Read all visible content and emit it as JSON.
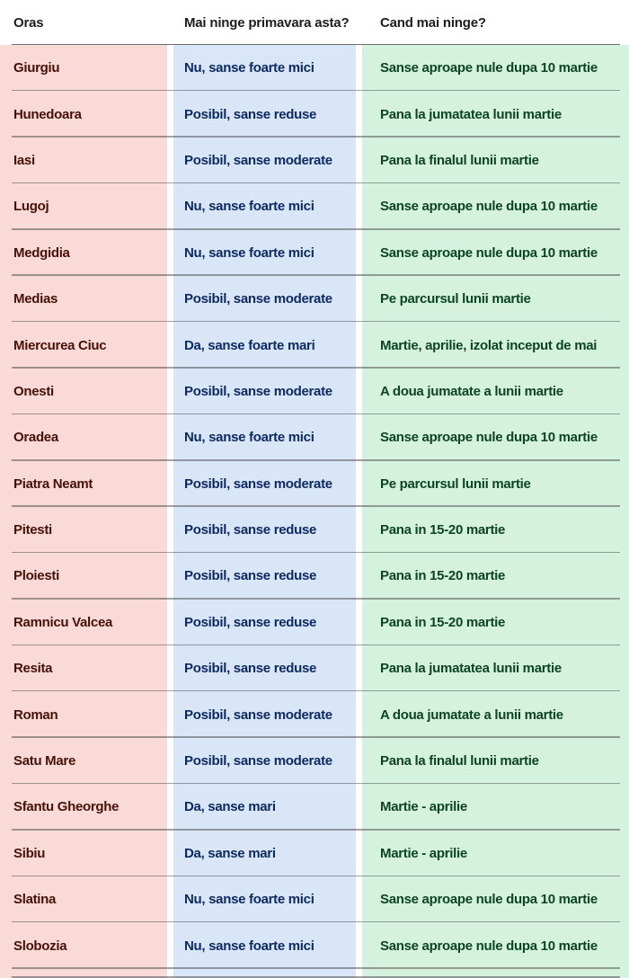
{
  "chart_data": {
    "type": "table",
    "columns": [
      "Oras",
      "Mai ninge primavara asta?",
      "Cand mai ninge?"
    ],
    "rows": [
      [
        "Giurgiu",
        "Nu, sanse foarte mici",
        "Sanse aproape nule dupa 10 martie"
      ],
      [
        "Hunedoara",
        "Posibil, sanse reduse",
        "Pana la jumatatea lunii martie"
      ],
      [
        "Iasi",
        "Posibil, sanse moderate",
        "Pana la finalul lunii martie"
      ],
      [
        "Lugoj",
        "Nu, sanse foarte mici",
        "Sanse aproape nule dupa 10 martie"
      ],
      [
        "Medgidia",
        "Nu, sanse foarte mici",
        "Sanse aproape nule dupa 10 martie"
      ],
      [
        "Medias",
        "Posibil, sanse moderate",
        "Pe parcursul lunii martie"
      ],
      [
        "Miercurea Ciuc",
        "Da, sanse foarte mari",
        "Martie, aprilie, izolat inceput de mai"
      ],
      [
        "Onesti",
        "Posibil, sanse moderate",
        "A doua jumatate a lunii martie"
      ],
      [
        "Oradea",
        "Nu, sanse foarte mici",
        "Sanse aproape nule dupa 10 martie"
      ],
      [
        "Piatra Neamt",
        "Posibil, sanse moderate",
        "Pe parcursul lunii martie"
      ],
      [
        "Pitesti",
        "Posibil, sanse reduse",
        "Pana in 15-20 martie"
      ],
      [
        "Ploiesti",
        "Posibil, sanse reduse",
        "Pana in 15-20 martie"
      ],
      [
        "Ramnicu Valcea",
        "Posibil, sanse reduse",
        "Pana in 15-20 martie"
      ],
      [
        "Resita",
        "Posibil, sanse reduse",
        "Pana la jumatatea lunii martie"
      ],
      [
        "Roman",
        "Posibil, sanse moderate",
        "A doua jumatate a lunii martie"
      ],
      [
        "Satu Mare",
        "Posibil, sanse moderate",
        "Pana la finalul lunii martie"
      ],
      [
        "Sfantu Gheorghe",
        "Da, sanse mari",
        "Martie - aprilie"
      ],
      [
        "Sibiu",
        "Da, sanse mari",
        "Martie - aprilie"
      ],
      [
        "Slatina",
        "Nu, sanse foarte mici",
        "Sanse aproape nule dupa 10 martie"
      ],
      [
        "Slobozia",
        "Nu, sanse foarte mici",
        "Sanse aproape nule dupa 10 martie"
      ]
    ],
    "legend": "none",
    "grid": "horizontal separators only"
  },
  "partial_row_visible": true,
  "colors": {
    "city_bg": "#f9dad6",
    "city_text": "#471109",
    "snow_bg": "#d8e6f8",
    "snow_text": "#0f2a61",
    "when_bg": "#d5f2df",
    "when_text": "#0d4424",
    "header_text": "#1d1d1f",
    "separator": "rgba(70,70,70,0.5)",
    "separator_header": "rgba(60,60,60,0.75)"
  }
}
